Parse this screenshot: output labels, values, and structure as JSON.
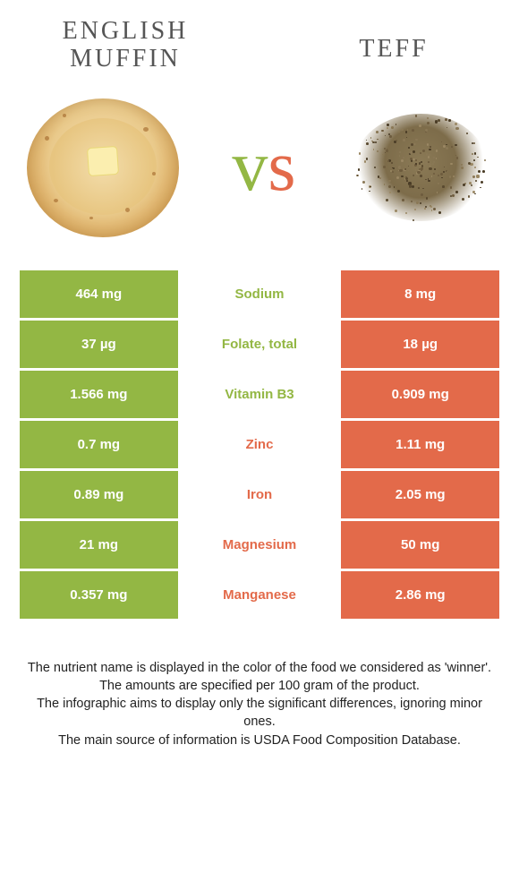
{
  "header": {
    "left_title": "English Muffin",
    "right_title": "Teff",
    "vs_v": "v",
    "vs_s": "s"
  },
  "colors": {
    "green": "#93b744",
    "orange": "#e36a4a",
    "white": "#ffffff"
  },
  "table": {
    "rows": [
      {
        "left": "464 mg",
        "mid": "Sodium",
        "right": "8 mg",
        "winner": "green"
      },
      {
        "left": "37 µg",
        "mid": "Folate, total",
        "right": "18 µg",
        "winner": "green"
      },
      {
        "left": "1.566 mg",
        "mid": "Vitamin B3",
        "right": "0.909 mg",
        "winner": "green"
      },
      {
        "left": "0.7 mg",
        "mid": "Zinc",
        "right": "1.11 mg",
        "winner": "orange"
      },
      {
        "left": "0.89 mg",
        "mid": "Iron",
        "right": "2.05 mg",
        "winner": "orange"
      },
      {
        "left": "21 mg",
        "mid": "Magnesium",
        "right": "50 mg",
        "winner": "orange"
      },
      {
        "left": "0.357 mg",
        "mid": "Manganese",
        "right": "2.86 mg",
        "winner": "orange"
      }
    ]
  },
  "footer": {
    "line1": "The nutrient name is displayed in the color of the food we considered as 'winner'.",
    "line2": "The amounts are specified per 100 gram of the product.",
    "line3": "The infographic aims to display only the significant differences, ignoring minor ones.",
    "line4": "The main source of information is USDA Food Composition Database."
  }
}
